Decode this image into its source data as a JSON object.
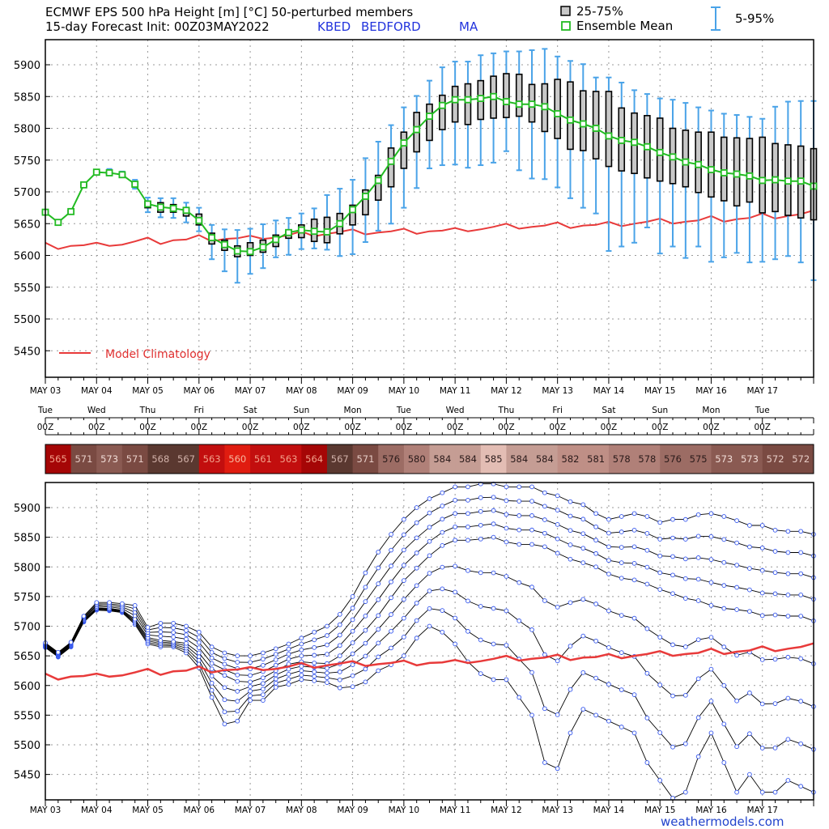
{
  "header": {
    "title_line1": "ECMWF EPS 500 hPa Height [m] [°C]  50-perturbed members",
    "title_line2": "15-day Forecast Init: 00Z03MAY2022",
    "station": "KBED",
    "station_name": "BEDFORD",
    "state": "MA"
  },
  "legend": {
    "iqr_label": "25-75%",
    "mean_label": "Ensemble Mean",
    "range_label": "5-95%",
    "climatology_label": "Model Climatology"
  },
  "credit": "weathermodels.com",
  "colors": {
    "mean": "#22bb22",
    "whisker": "#4aa3e8",
    "box_fill": "#c8c8c8",
    "climatology": "#e83a3a",
    "member_line": "#000000",
    "member_marker": "#3355ee",
    "grid": "#999999"
  },
  "x_axis": {
    "date_labels": [
      "MAY 03",
      "MAY 04",
      "MAY 05",
      "MAY 06",
      "MAY 07",
      "MAY 08",
      "MAY 09",
      "MAY 10",
      "MAY 11",
      "MAY 12",
      "MAY 13",
      "MAY 14",
      "MAY 15",
      "MAY 16",
      "MAY 17"
    ],
    "day_labels": [
      "Tue",
      "Wed",
      "Thu",
      "Fri",
      "Sat",
      "Sun",
      "Mon",
      "Tue",
      "Wed",
      "Thu",
      "Fri",
      "Sat",
      "Sun",
      "Mon",
      "Tue"
    ],
    "hour_label": "00Z"
  },
  "thickness_strip": {
    "values": [
      "565",
      "571",
      "573",
      "571",
      "568",
      "567",
      "563",
      "560",
      "561",
      "563",
      "564",
      "567",
      "571",
      "576",
      "580",
      "584",
      "584",
      "585",
      "584",
      "584",
      "582",
      "581",
      "578",
      "578",
      "576",
      "575",
      "573",
      "573",
      "572",
      "572"
    ]
  },
  "chart_data": [
    {
      "type": "box",
      "title": "ECMWF EPS 500 hPa Height [m] [°C]  50-perturbed members",
      "ylabel": "",
      "ylim": [
        5410,
        5960
      ],
      "yticks": [
        5450,
        5500,
        5550,
        5600,
        5650,
        5700,
        5750,
        5800,
        5850,
        5900
      ],
      "xlim": [
        0,
        15
      ],
      "x_unit": "days from 00Z03MAY2022",
      "grid": true,
      "ensemble_mean": {
        "x": [
          0,
          0.25,
          0.5,
          0.75,
          1,
          1.25,
          1.5,
          1.75,
          2,
          2.25,
          2.5,
          2.75,
          3,
          3.25,
          3.5,
          3.75,
          4,
          4.25,
          4.5,
          4.75,
          5,
          5.25,
          5.5,
          5.75,
          6,
          6.25,
          6.5,
          6.75,
          7,
          7.25,
          7.5,
          7.75,
          8,
          8.25,
          8.5,
          8.75,
          9,
          9.25,
          9.5,
          9.75,
          10,
          10.25,
          10.5,
          10.75,
          11,
          11.25,
          11.5,
          11.75,
          12,
          12.25,
          12.5,
          12.75,
          13,
          13.25,
          13.5,
          13.75,
          14,
          14.25,
          14.5,
          14.75,
          15
        ],
        "y": [
          5668,
          5652,
          5669,
          5711,
          5731,
          5730,
          5727,
          5712,
          5681,
          5676,
          5674,
          5671,
          5655,
          5628,
          5617,
          5607,
          5606,
          5613,
          5625,
          5636,
          5640,
          5638,
          5637,
          5650,
          5672,
          5693,
          5718,
          5748,
          5777,
          5798,
          5819,
          5836,
          5845,
          5845,
          5847,
          5850,
          5842,
          5838,
          5838,
          5834,
          5823,
          5813,
          5807,
          5800,
          5788,
          5781,
          5778,
          5771,
          5762,
          5755,
          5747,
          5743,
          5735,
          5730,
          5728,
          5725,
          5718,
          5719,
          5717,
          5717,
          5709
        ]
      },
      "boxes": {
        "x": [
          0,
          0.25,
          0.5,
          0.75,
          1,
          1.25,
          1.5,
          1.75,
          2,
          2.25,
          2.5,
          2.75,
          3,
          3.25,
          3.5,
          3.75,
          4,
          4.25,
          4.5,
          4.75,
          5,
          5.25,
          5.5,
          5.75,
          6,
          6.25,
          6.5,
          6.75,
          7,
          7.25,
          7.5,
          7.75,
          8,
          8.25,
          8.5,
          8.75,
          9,
          9.25,
          9.5,
          9.75,
          10,
          10.25,
          10.5,
          10.75,
          11,
          11.25,
          11.5,
          11.75,
          12,
          12.25,
          12.5,
          12.75,
          13,
          13.25,
          13.5,
          13.75,
          14,
          14.25,
          14.5,
          14.75,
          15
        ],
        "q25": [
          5666,
          5650,
          5667,
          5709,
          5729,
          5728,
          5725,
          5709,
          5675,
          5668,
          5668,
          5662,
          5648,
          5618,
          5608,
          5598,
          5600,
          5605,
          5614,
          5627,
          5628,
          5622,
          5620,
          5634,
          5648,
          5664,
          5687,
          5708,
          5737,
          5763,
          5781,
          5798,
          5810,
          5806,
          5814,
          5816,
          5817,
          5819,
          5810,
          5795,
          5784,
          5767,
          5765,
          5752,
          5740,
          5733,
          5729,
          5722,
          5717,
          5713,
          5708,
          5699,
          5692,
          5686,
          5678,
          5684,
          5667,
          5669,
          5663,
          5659,
          5656
        ],
        "q75": [
          5670,
          5654,
          5671,
          5713,
          5733,
          5732,
          5729,
          5715,
          5685,
          5683,
          5680,
          5675,
          5665,
          5635,
          5624,
          5615,
          5620,
          5624,
          5632,
          5638,
          5648,
          5657,
          5660,
          5666,
          5679,
          5703,
          5726,
          5769,
          5794,
          5825,
          5838,
          5852,
          5866,
          5870,
          5875,
          5882,
          5886,
          5885,
          5869,
          5870,
          5877,
          5873,
          5859,
          5858,
          5858,
          5832,
          5824,
          5820,
          5816,
          5800,
          5797,
          5794,
          5794,
          5786,
          5785,
          5784,
          5786,
          5776,
          5774,
          5772,
          5768
        ],
        "p5": [
          5664,
          5648,
          5665,
          5707,
          5727,
          5726,
          5723,
          5705,
          5668,
          5660,
          5659,
          5652,
          5638,
          5594,
          5575,
          5557,
          5571,
          5580,
          5597,
          5601,
          5610,
          5611,
          5609,
          5599,
          5602,
          5621,
          5639,
          5650,
          5675,
          5706,
          5737,
          5742,
          5743,
          5738,
          5742,
          5746,
          5764,
          5734,
          5721,
          5720,
          5707,
          5690,
          5675,
          5666,
          5607,
          5614,
          5620,
          5644,
          5603,
          5614,
          5596,
          5614,
          5590,
          5597,
          5604,
          5589,
          5590,
          5594,
          5599,
          5589,
          5561
        ],
        "p95": [
          5672,
          5656,
          5673,
          5715,
          5735,
          5736,
          5732,
          5719,
          5691,
          5690,
          5690,
          5683,
          5675,
          5648,
          5641,
          5640,
          5642,
          5649,
          5655,
          5659,
          5666,
          5674,
          5695,
          5705,
          5719,
          5753,
          5779,
          5805,
          5833,
          5851,
          5875,
          5896,
          5905,
          5905,
          5915,
          5918,
          5921,
          5921,
          5923,
          5925,
          5913,
          5906,
          5901,
          5880,
          5880,
          5872,
          5860,
          5854,
          5847,
          5845,
          5840,
          5833,
          5828,
          5823,
          5821,
          5818,
          5815,
          5834,
          5842,
          5843,
          5843
        ]
      },
      "climatology": {
        "x": [
          0,
          0.25,
          0.5,
          0.75,
          1,
          1.25,
          1.5,
          1.75,
          2,
          2.25,
          2.5,
          2.75,
          3,
          3.25,
          3.5,
          3.75,
          4,
          4.25,
          4.5,
          4.75,
          5,
          5.25,
          5.5,
          5.75,
          6,
          6.25,
          6.5,
          6.75,
          7,
          7.25,
          7.5,
          7.75,
          8,
          8.25,
          8.5,
          8.75,
          9,
          9.25,
          9.5,
          9.75,
          10,
          10.25,
          10.5,
          10.75,
          11,
          11.25,
          11.5,
          11.75,
          12,
          12.25,
          12.5,
          12.75,
          13,
          13.25,
          13.5,
          13.75,
          14,
          14.25,
          14.5,
          14.75,
          15
        ],
        "y": [
          5620,
          5610,
          5615,
          5616,
          5620,
          5615,
          5617,
          5622,
          5628,
          5618,
          5624,
          5625,
          5632,
          5622,
          5626,
          5627,
          5631,
          5626,
          5628,
          5632,
          5638,
          5630,
          5634,
          5637,
          5641,
          5633,
          5636,
          5638,
          5642,
          5634,
          5638,
          5639,
          5643,
          5638,
          5641,
          5645,
          5650,
          5642,
          5645,
          5647,
          5652,
          5643,
          5647,
          5648,
          5653,
          5646,
          5650,
          5653,
          5658,
          5650,
          5653,
          5655,
          5662,
          5653,
          5657,
          5659,
          5666,
          5658,
          5662,
          5665,
          5671
        ]
      }
    },
    {
      "type": "line",
      "title": "",
      "ylabel": "",
      "ylim": [
        5410,
        5940
      ],
      "yticks": [
        5450,
        5500,
        5550,
        5600,
        5650,
        5700,
        5750,
        5800,
        5850,
        5900
      ],
      "xlim": [
        0,
        15
      ],
      "x_unit": "days from 00Z03MAY2022",
      "grid": true,
      "member_count": 50,
      "spread_envelope": {
        "x": [
          0,
          0.25,
          0.5,
          0.75,
          1,
          1.25,
          1.5,
          1.75,
          2,
          2.25,
          2.5,
          2.75,
          3,
          3.25,
          3.5,
          3.75,
          4,
          4.25,
          4.5,
          4.75,
          5,
          5.25,
          5.5,
          5.75,
          6,
          6.25,
          6.5,
          6.75,
          7,
          7.25,
          7.5,
          7.75,
          8,
          8.25,
          8.5,
          8.75,
          9,
          9.25,
          9.5,
          9.75,
          10,
          10.25,
          10.5,
          10.75,
          11,
          11.25,
          11.5,
          11.75,
          12,
          12.25,
          12.5,
          12.75,
          13,
          13.25,
          13.5,
          13.75,
          14,
          14.25,
          14.5,
          14.75,
          15
        ],
        "low": [
          5664,
          5648,
          5665,
          5707,
          5727,
          5726,
          5723,
          5703,
          5670,
          5665,
          5665,
          5655,
          5630,
          5580,
          5535,
          5540,
          5575,
          5575,
          5597,
          5602,
          5610,
          5608,
          5605,
          5596,
          5598,
          5606,
          5625,
          5635,
          5650,
          5680,
          5700,
          5690,
          5670,
          5640,
          5620,
          5610,
          5610,
          5580,
          5550,
          5470,
          5460,
          5520,
          5560,
          5550,
          5540,
          5530,
          5520,
          5470,
          5440,
          5410,
          5420,
          5480,
          5520,
          5470,
          5420,
          5450,
          5420,
          5420,
          5440,
          5430,
          5420
        ],
        "high": [
          5672,
          5656,
          5673,
          5717,
          5740,
          5740,
          5738,
          5735,
          5698,
          5705,
          5705,
          5700,
          5690,
          5665,
          5655,
          5650,
          5650,
          5655,
          5662,
          5670,
          5680,
          5690,
          5700,
          5720,
          5750,
          5790,
          5825,
          5855,
          5880,
          5900,
          5915,
          5925,
          5935,
          5935,
          5940,
          5940,
          5935,
          5935,
          5935,
          5925,
          5920,
          5910,
          5905,
          5890,
          5880,
          5885,
          5890,
          5885,
          5875,
          5880,
          5880,
          5888,
          5890,
          5885,
          5878,
          5870,
          5870,
          5862,
          5860,
          5860,
          5855
        ]
      },
      "climatology": {
        "x": [
          0,
          0.25,
          0.5,
          0.75,
          1,
          1.25,
          1.5,
          1.75,
          2,
          2.25,
          2.5,
          2.75,
          3,
          3.25,
          3.5,
          3.75,
          4,
          4.25,
          4.5,
          4.75,
          5,
          5.25,
          5.5,
          5.75,
          6,
          6.25,
          6.5,
          6.75,
          7,
          7.25,
          7.5,
          7.75,
          8,
          8.25,
          8.5,
          8.75,
          9,
          9.25,
          9.5,
          9.75,
          10,
          10.25,
          10.5,
          10.75,
          11,
          11.25,
          11.5,
          11.75,
          12,
          12.25,
          12.5,
          12.75,
          13,
          13.25,
          13.5,
          13.75,
          14,
          14.25,
          14.5,
          14.75,
          15
        ],
        "y": [
          5620,
          5610,
          5615,
          5616,
          5620,
          5615,
          5617,
          5622,
          5628,
          5618,
          5624,
          5625,
          5632,
          5622,
          5626,
          5627,
          5631,
          5626,
          5628,
          5632,
          5638,
          5630,
          5634,
          5637,
          5641,
          5633,
          5636,
          5638,
          5642,
          5634,
          5638,
          5639,
          5643,
          5638,
          5641,
          5645,
          5650,
          5642,
          5645,
          5647,
          5652,
          5643,
          5647,
          5648,
          5653,
          5646,
          5650,
          5653,
          5658,
          5650,
          5653,
          5655,
          5662,
          5653,
          5657,
          5659,
          5666,
          5658,
          5662,
          5665,
          5671
        ]
      }
    }
  ]
}
